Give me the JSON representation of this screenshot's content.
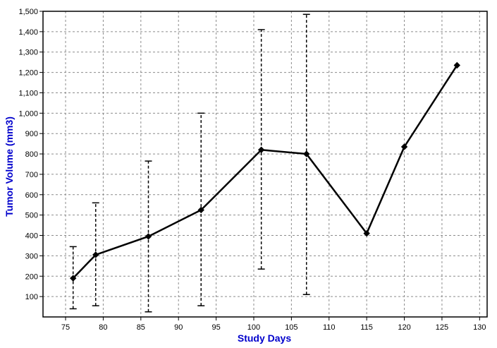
{
  "chart_data": {
    "type": "line",
    "xlabel": "Study Days",
    "ylabel": "Tumor Volume (mm3)",
    "xlim": [
      72,
      131
    ],
    "ylim": [
      0,
      1500
    ],
    "x_ticks": [
      75,
      80,
      85,
      90,
      95,
      100,
      105,
      110,
      115,
      120,
      125,
      130
    ],
    "y_ticks": [
      100,
      200,
      300,
      400,
      500,
      600,
      700,
      800,
      900,
      1000,
      1100,
      1200,
      1300,
      1400,
      1500
    ],
    "y_tick_labels": [
      "100",
      "200",
      "300",
      "400",
      "500",
      "600",
      "700",
      "800",
      "900",
      "1,000",
      "1,100",
      "1,200",
      "1,300",
      "1,400",
      "1,500"
    ],
    "grid": true,
    "series": [
      {
        "color": "#000000",
        "marker": "diamond",
        "points": [
          {
            "x": 76,
            "y": 190,
            "err_low": 40,
            "err_high": 345
          },
          {
            "x": 79,
            "y": 305,
            "err_low": 55,
            "err_high": 560
          },
          {
            "x": 86,
            "y": 395,
            "err_low": 25,
            "err_high": 765
          },
          {
            "x": 93,
            "y": 525,
            "err_low": 55,
            "err_high": 1000
          },
          {
            "x": 101,
            "y": 820,
            "err_low": 235,
            "err_high": 1410
          },
          {
            "x": 107,
            "y": 800,
            "err_low": 110,
            "err_high": 1485
          },
          {
            "x": 115,
            "y": 410
          },
          {
            "x": 120,
            "y": 835
          },
          {
            "x": 127,
            "y": 1235
          }
        ]
      }
    ]
  }
}
